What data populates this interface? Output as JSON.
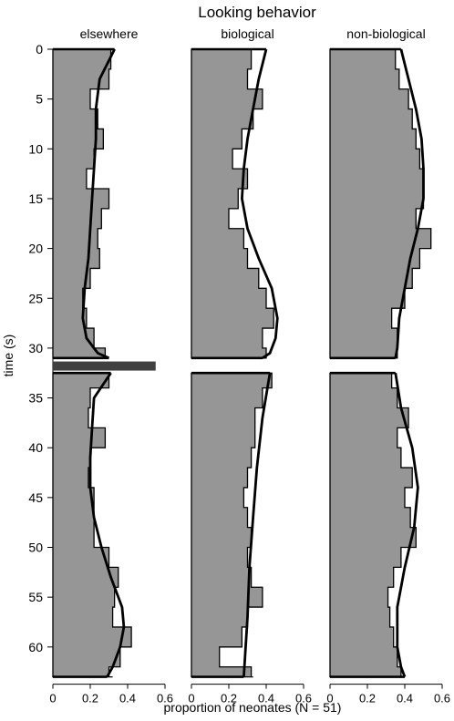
{
  "chart_data": {
    "type": "area",
    "title": "Looking behavior",
    "xlabel": "proportion of neonates (N = 51)",
    "ylabel": "time (s)",
    "xlim": [
      0,
      0.6
    ],
    "ylim": [
      0,
      63
    ],
    "x_ticks": [
      "0",
      "0.2",
      "0.4",
      "0.6"
    ],
    "y_ticks": [
      "0",
      "5",
      "10",
      "15",
      "20",
      "25",
      "30",
      "35",
      "40",
      "45",
      "50",
      "55",
      "60"
    ],
    "grid": false,
    "segments": [
      [
        0,
        31
      ],
      [
        32.5,
        63
      ]
    ],
    "gap_marker": {
      "time": 31.8,
      "x_end": 0.55,
      "color": "#404040"
    },
    "colors": {
      "fill": "#969696",
      "line": "#000000"
    },
    "panels": [
      {
        "name": "elsewhere",
        "observed": {
          "time": [
            0,
            2,
            4,
            6,
            8,
            10,
            12,
            14,
            16,
            18,
            20,
            22,
            24,
            26,
            28,
            30,
            31,
            32.5,
            34,
            36,
            38,
            40,
            42,
            44,
            46,
            48,
            50,
            52,
            54,
            56,
            58,
            60,
            62,
            63
          ],
          "proportion": [
            0.31,
            0.3,
            0.2,
            0.24,
            0.27,
            0.22,
            0.18,
            0.3,
            0.26,
            0.24,
            0.25,
            0.2,
            0.16,
            0.18,
            0.22,
            0.28,
            0.3,
            0.3,
            0.2,
            0.19,
            0.28,
            0.2,
            0.19,
            0.22,
            0.22,
            0.22,
            0.3,
            0.35,
            0.33,
            0.32,
            0.42,
            0.36,
            0.3,
            0.32
          ]
        },
        "smooth": {
          "time": [
            0,
            3,
            6,
            9,
            12,
            15,
            18,
            21,
            24,
            27,
            29,
            30.5,
            31,
            32.5,
            35,
            38,
            41,
            44,
            47,
            50,
            53,
            56,
            58,
            60,
            62,
            63
          ],
          "proportion": [
            0.33,
            0.25,
            0.23,
            0.23,
            0.22,
            0.21,
            0.2,
            0.19,
            0.17,
            0.16,
            0.18,
            0.24,
            0.3,
            0.31,
            0.22,
            0.21,
            0.2,
            0.2,
            0.22,
            0.26,
            0.31,
            0.37,
            0.38,
            0.36,
            0.32,
            0.29
          ]
        }
      },
      {
        "name": "biological",
        "observed": {
          "time": [
            0,
            2,
            4,
            6,
            8,
            10,
            12,
            14,
            16,
            18,
            20,
            22,
            24,
            26,
            28,
            30,
            31,
            32.5,
            34,
            36,
            38,
            40,
            42,
            44,
            46,
            48,
            50,
            52,
            54,
            56,
            58,
            60,
            62,
            63
          ],
          "proportion": [
            0.32,
            0.3,
            0.38,
            0.33,
            0.27,
            0.22,
            0.3,
            0.25,
            0.2,
            0.28,
            0.3,
            0.36,
            0.4,
            0.44,
            0.38,
            0.4,
            0.32,
            0.43,
            0.38,
            0.34,
            0.34,
            0.32,
            0.3,
            0.28,
            0.3,
            0.32,
            0.3,
            0.32,
            0.38,
            0.3,
            0.27,
            0.15,
            0.32,
            0.33
          ]
        },
        "smooth": {
          "time": [
            0,
            3,
            6,
            9,
            12,
            15,
            18,
            21,
            24,
            27,
            29,
            30.5,
            31,
            32.5,
            37,
            42,
            47,
            52,
            57,
            63
          ],
          "proportion": [
            0.4,
            0.36,
            0.33,
            0.3,
            0.28,
            0.27,
            0.3,
            0.36,
            0.43,
            0.46,
            0.45,
            0.42,
            0.38,
            0.42,
            0.38,
            0.35,
            0.33,
            0.31,
            0.3,
            0.28
          ]
        }
      },
      {
        "name": "non-biological",
        "observed": {
          "time": [
            0,
            2,
            4,
            6,
            8,
            10,
            12,
            14,
            16,
            18,
            20,
            22,
            24,
            26,
            28,
            30,
            31,
            32.5,
            34,
            36,
            38,
            40,
            42,
            44,
            46,
            48,
            50,
            52,
            54,
            56,
            58,
            60,
            62,
            63
          ],
          "proportion": [
            0.35,
            0.37,
            0.42,
            0.44,
            0.46,
            0.48,
            0.5,
            0.5,
            0.46,
            0.54,
            0.48,
            0.44,
            0.4,
            0.33,
            0.36,
            0.36,
            0.35,
            0.33,
            0.36,
            0.42,
            0.36,
            0.38,
            0.44,
            0.4,
            0.43,
            0.46,
            0.38,
            0.34,
            0.31,
            0.32,
            0.34,
            0.36,
            0.38,
            0.4
          ]
        },
        "smooth": {
          "time": [
            0,
            3,
            6,
            9,
            12,
            15,
            18,
            21,
            24,
            27,
            30,
            31,
            32.5,
            36,
            40,
            44,
            48,
            52,
            56,
            60,
            62,
            63
          ],
          "proportion": [
            0.38,
            0.42,
            0.46,
            0.49,
            0.5,
            0.5,
            0.47,
            0.43,
            0.4,
            0.37,
            0.36,
            0.35,
            0.35,
            0.38,
            0.44,
            0.47,
            0.45,
            0.4,
            0.36,
            0.36,
            0.38,
            0.4
          ]
        }
      }
    ]
  }
}
